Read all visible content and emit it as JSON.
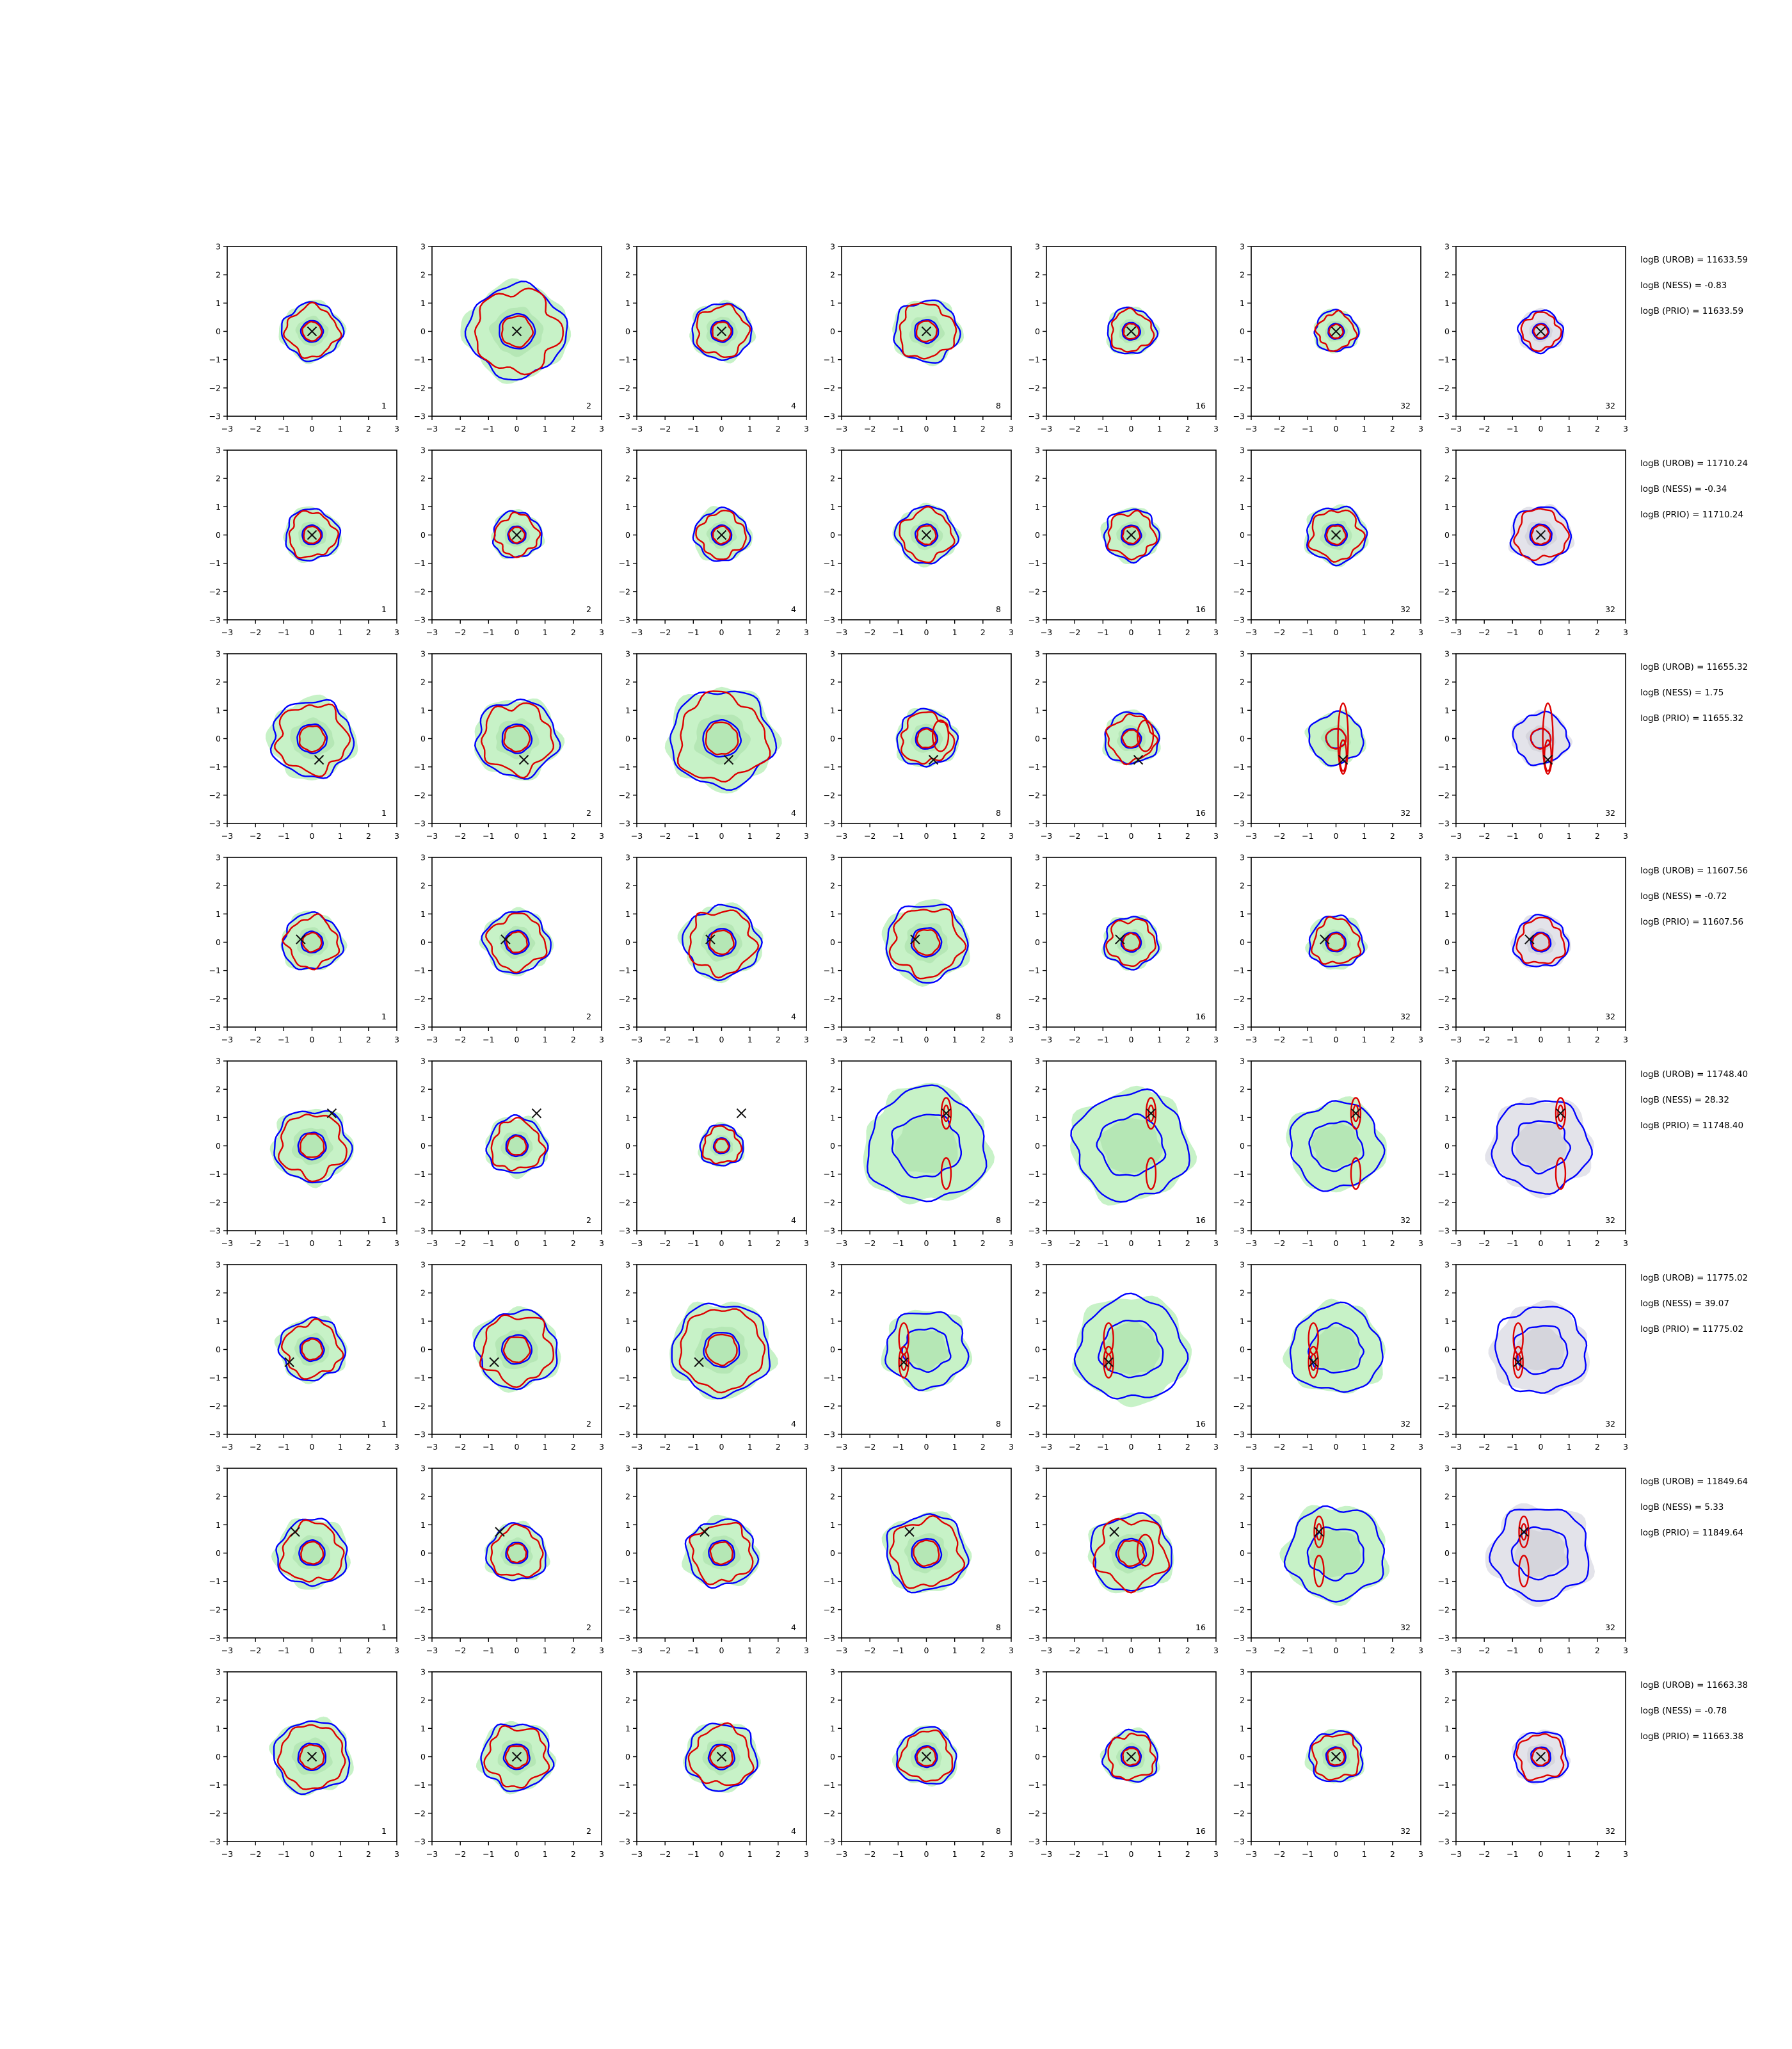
{
  "figure": {
    "x_ticks": [
      "−3",
      "−2",
      "−1",
      "0",
      "1",
      "2",
      "3"
    ],
    "y_ticks": [
      "−3",
      "−2",
      "−1",
      "0",
      "1",
      "2",
      "3"
    ],
    "colors": {
      "blue": "#0000ff",
      "red": "#dd0000",
      "green_fill": "#c7f2c7",
      "green_dark": "#aee2ae",
      "gray_fill": "#e3e3ea",
      "gray_dark": "#cfcfd6"
    }
  },
  "chart_data": [
    {
      "row": 1,
      "labels": [
        "logB (UROB) = 11633.59",
        "logB (NESS) = -0.83",
        "logB (PRIO) = 11633.59"
      ],
      "marker": [
        0,
        0
      ],
      "panels": [
        {
          "n": "1",
          "s": 1.1,
          "sp": 0
        },
        {
          "n": "2",
          "s": 1.8,
          "sp": 0
        },
        {
          "n": "4",
          "s": 1.1,
          "sp": 0
        },
        {
          "n": "8",
          "s": 1.2,
          "sp": 0
        },
        {
          "n": "16",
          "s": 0.9,
          "sp": 0
        },
        {
          "n": "32",
          "s": 0.8,
          "sp": 0
        },
        {
          "n": "32",
          "s": 0.8,
          "sp": 0,
          "gray": true
        }
      ]
    },
    {
      "row": 2,
      "labels": [
        "logB (UROB) = 11710.24",
        "logB (NESS) = -0.34",
        "logB (PRIO) = 11710.24"
      ],
      "marker": [
        0,
        0
      ],
      "panels": [
        {
          "n": "1",
          "s": 1.0,
          "sp": 0
        },
        {
          "n": "2",
          "s": 0.9,
          "sp": 0
        },
        {
          "n": "4",
          "s": 1.0,
          "sp": 0
        },
        {
          "n": "8",
          "s": 1.1,
          "sp": 0
        },
        {
          "n": "16",
          "s": 1.0,
          "sp": 0
        },
        {
          "n": "32",
          "s": 1.1,
          "sp": 0
        },
        {
          "n": "32",
          "s": 1.1,
          "sp": 0,
          "gray": true
        }
      ]
    },
    {
      "row": 3,
      "labels": [
        "logB (UROB) = 11655.32",
        "logB (NESS) = 1.75",
        "logB (PRIO) = 11655.32"
      ],
      "marker": [
        0.25,
        -0.75
      ],
      "panels": [
        {
          "n": "1",
          "s": 1.5,
          "sp": 0
        },
        {
          "n": "2",
          "s": 1.5,
          "sp": 0
        },
        {
          "n": "4",
          "s": 1.9,
          "sp": 0
        },
        {
          "n": "8",
          "s": 1.1,
          "sp": 0.4
        },
        {
          "n": "16",
          "s": 1.0,
          "sp": 0.3
        },
        {
          "n": "32",
          "s": 1.0,
          "sp": 1
        },
        {
          "n": "32",
          "s": 1.0,
          "sp": 1,
          "gray": true
        }
      ]
    },
    {
      "row": 4,
      "labels": [
        "logB (UROB) = 11607.56",
        "logB (NESS) = -0.72",
        "logB (PRIO) = 11607.56"
      ],
      "marker": [
        -0.4,
        0.1
      ],
      "panels": [
        {
          "n": "1",
          "s": 1.1,
          "sp": 0
        },
        {
          "n": "2",
          "s": 1.2,
          "sp": 0
        },
        {
          "n": "4",
          "s": 1.4,
          "sp": 0
        },
        {
          "n": "8",
          "s": 1.5,
          "sp": 0
        },
        {
          "n": "16",
          "s": 1.0,
          "sp": 0
        },
        {
          "n": "32",
          "s": 1.0,
          "sp": 0
        },
        {
          "n": "32",
          "s": 1.0,
          "sp": 0,
          "gray": true
        }
      ]
    },
    {
      "row": 5,
      "labels": [
        "logB (UROB) = 11748.40",
        "logB (NESS) = 28.32",
        "logB (PRIO) = 11748.40"
      ],
      "marker": [
        0.7,
        1.15
      ],
      "panels": [
        {
          "n": "1",
          "s": 1.4,
          "sp": 0
        },
        {
          "n": "2",
          "s": 1.1,
          "sp": 0
        },
        {
          "n": "4",
          "s": 0.8,
          "sp": 0
        },
        {
          "n": "8",
          "s": 2.2,
          "sp": 2
        },
        {
          "n": "16",
          "s": 2.1,
          "sp": 2
        },
        {
          "n": "32",
          "s": 1.7,
          "sp": 2
        },
        {
          "n": "32",
          "s": 1.8,
          "sp": 2,
          "gray": true
        }
      ]
    },
    {
      "row": 6,
      "labels": [
        "logB (UROB) = 11775.02",
        "logB (NESS) = 39.07",
        "logB (PRIO) = 11775.02"
      ],
      "marker": [
        -0.8,
        -0.45
      ],
      "panels": [
        {
          "n": "1",
          "s": 1.2,
          "sp": 0
        },
        {
          "n": "2",
          "s": 1.5,
          "sp": 0
        },
        {
          "n": "4",
          "s": 1.8,
          "sp": 0
        },
        {
          "n": "8",
          "s": 1.5,
          "sp": 2
        },
        {
          "n": "16",
          "s": 2.0,
          "sp": 2
        },
        {
          "n": "32",
          "s": 1.7,
          "sp": 2
        },
        {
          "n": "32",
          "s": 1.7,
          "sp": 2,
          "gray": true
        }
      ]
    },
    {
      "row": 7,
      "labels": [
        "logB (UROB) = 11849.64",
        "logB (NESS) = 5.33",
        "logB (PRIO) = 11849.64"
      ],
      "marker": [
        -0.6,
        0.75
      ],
      "panels": [
        {
          "n": "1",
          "s": 1.3,
          "sp": 0
        },
        {
          "n": "2",
          "s": 1.1,
          "sp": 0
        },
        {
          "n": "4",
          "s": 1.3,
          "sp": 0
        },
        {
          "n": "8",
          "s": 1.5,
          "sp": 0
        },
        {
          "n": "16",
          "s": 1.5,
          "sp": 0.5
        },
        {
          "n": "32",
          "s": 1.8,
          "sp": 2
        },
        {
          "n": "32",
          "s": 1.8,
          "sp": 2,
          "gray": true
        }
      ]
    },
    {
      "row": 8,
      "labels": [
        "logB (UROB) = 11663.38",
        "logB (NESS) = -0.78",
        "logB (PRIO) = 11663.38"
      ],
      "marker": [
        0,
        0
      ],
      "panels": [
        {
          "n": "1",
          "s": 1.4,
          "sp": 0
        },
        {
          "n": "2",
          "s": 1.3,
          "sp": 0
        },
        {
          "n": "4",
          "s": 1.3,
          "sp": 0
        },
        {
          "n": "8",
          "s": 1.1,
          "sp": 0
        },
        {
          "n": "16",
          "s": 1.0,
          "sp": 0
        },
        {
          "n": "32",
          "s": 1.0,
          "sp": 0
        },
        {
          "n": "32",
          "s": 1.0,
          "sp": 0,
          "gray": true
        }
      ]
    }
  ]
}
